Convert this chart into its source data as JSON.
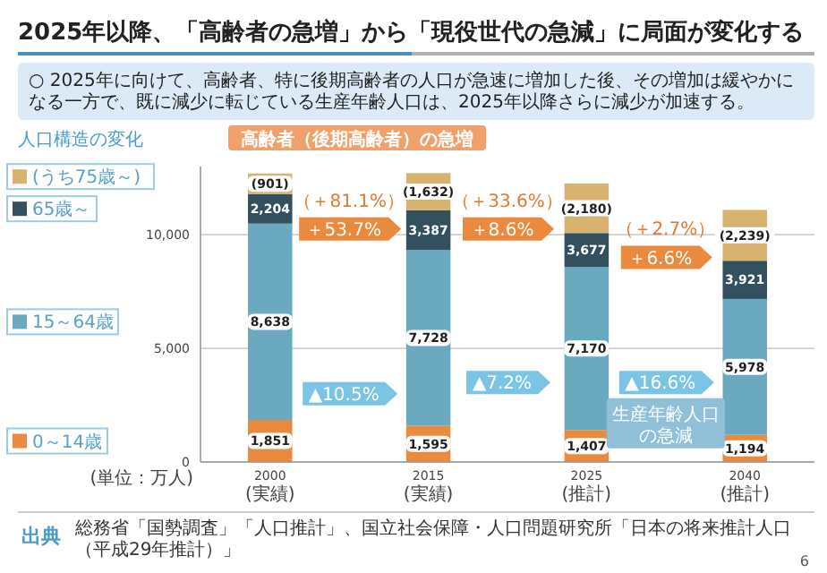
{
  "chart_data": {
    "type": "bar",
    "stacked": true,
    "title": "2025年以降、「高齢者の急増」から「現役世代の急減」に局面が変化する",
    "subtitle": "○ 2025年に向けて、高齢者、特に後期高齢者の人口が急速に増加した後、その増加は緩やかになる一方で、既に減少に転じている生産年齢人口は、2025年以降さらに減少が加速する。",
    "legend_title": "人口構造の変化",
    "ylabel": "(単位：万人)",
    "categories": [
      "2000\n(実績)",
      "2015\n(実績)",
      "2025\n(推計)",
      "2040\n(推計)"
    ],
    "series": [
      {
        "name": "0～14歳",
        "color": "#ea8a3e",
        "values": [
          1851,
          1595,
          1407,
          1194
        ],
        "value_labels": [
          "1,851",
          "1,595",
          "1,407",
          "1,194"
        ]
      },
      {
        "name": "15～64歳",
        "color": "#6ba9c1",
        "values": [
          8638,
          7728,
          7170,
          5978
        ],
        "value_labels": [
          "8,638",
          "7,728",
          "7,170",
          "5,978"
        ]
      },
      {
        "name": "65歳～",
        "color": "#33505f",
        "values": [
          1303,
          1755,
          1497,
          1682
        ]
      },
      {
        "name": "(うち75歳～)",
        "color": "#d8b36f",
        "values": [
          901,
          1632,
          2180,
          2239
        ],
        "value_labels": [
          "(901)",
          "(1,632)",
          "(2,180)",
          "(2,239)"
        ]
      }
    ],
    "ylim": [
      0,
      13000
    ],
    "yticks": [
      0,
      {
        "value": 5000,
        "label": "5,000"
      },
      {
        "value": 10000,
        "label": "10,000"
      }
    ],
    "grid": "y",
    "legend": "left",
    "annotations": [
      "高齢者（後期高齢者）の急増",
      "（＋81.1%）",
      "＋53.7%",
      "（＋33.6%）",
      "＋8.6%",
      "（＋2.7%）",
      "＋6.6%",
      "▲10.5%",
      "▲7.2%",
      "▲16.6%",
      "生産年齢人口の急減",
      "出典",
      "総務省「国勢調査」「人口推計」、国立社会保障・人口問題研究所「日本の将来推計人口（平成29年推計）」",
      "6",
      "2,204",
      "3,387",
      "3,677",
      "3,921"
    ]
  }
}
